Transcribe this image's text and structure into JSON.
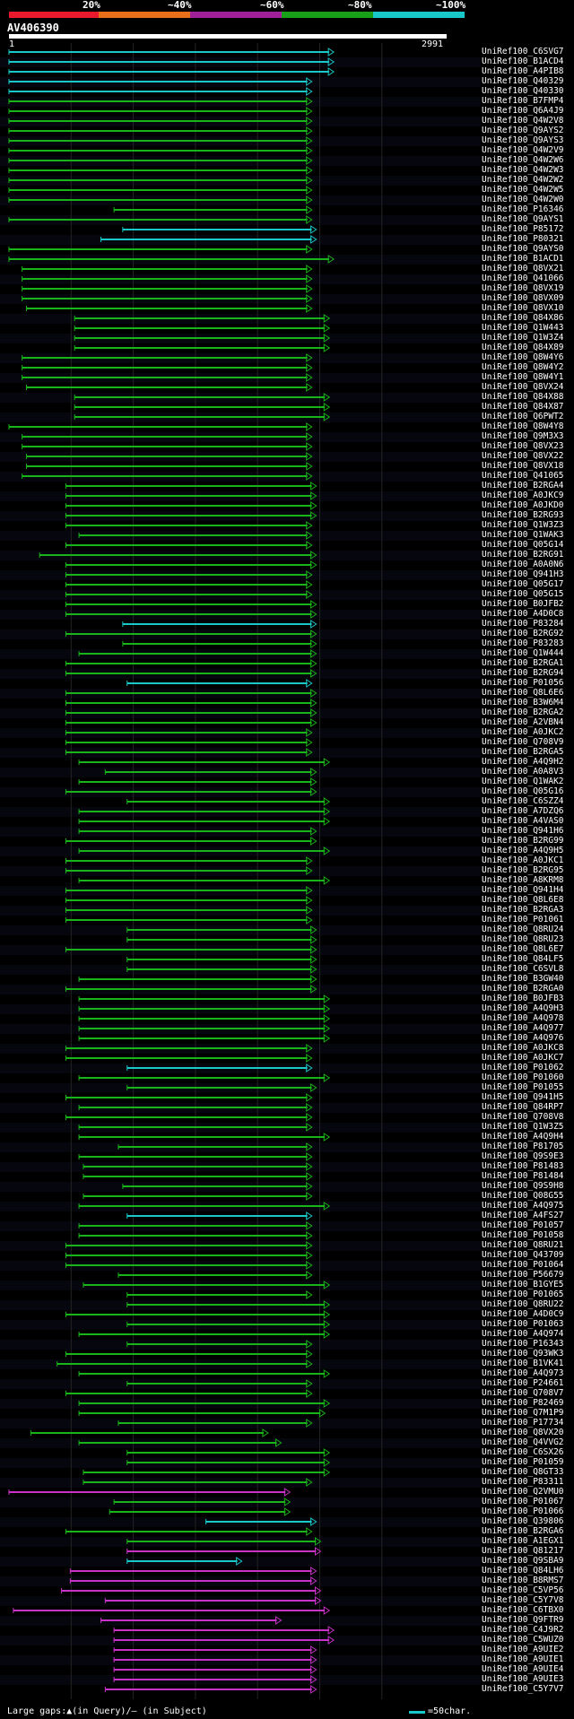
{
  "legend": {
    "labels": [
      "20%",
      "~40%",
      "~60%",
      "~80%",
      "~100%"
    ],
    "colors": [
      "#e8192c",
      "#e8701a",
      "#a0209a",
      "#19a019",
      "#19c8c8"
    ]
  },
  "query": {
    "name": "AV406390",
    "start": "1",
    "end": "2991"
  },
  "footer": {
    "note": "Large gaps:▲(in Query)/– (in Subject)",
    "scale_label": "=50char."
  },
  "hits": [
    {
      "name": "UniRef100_C6SVG7",
      "c": "cyan",
      "s": 0,
      "e": 0.74
    },
    {
      "name": "UniRef100_B1ACD4",
      "c": "cyan",
      "s": 0,
      "e": 0.74
    },
    {
      "name": "UniRef100_A4PIB8",
      "c": "cyan",
      "s": 0,
      "e": 0.74
    },
    {
      "name": "UniRef100_Q40329",
      "c": "cyan",
      "s": 0,
      "e": 0.69
    },
    {
      "name": "UniRef100_Q40330",
      "c": "cyan",
      "s": 0,
      "e": 0.69
    },
    {
      "name": "UniRef100_B7FMP4",
      "c": "green",
      "s": 0,
      "e": 0.69
    },
    {
      "name": "UniRef100_Q6A4J9",
      "c": "green",
      "s": 0,
      "e": 0.69
    },
    {
      "name": "UniRef100_Q4W2V8",
      "c": "green",
      "s": 0,
      "e": 0.69
    },
    {
      "name": "UniRef100_Q9AYS2",
      "c": "green",
      "s": 0,
      "e": 0.69
    },
    {
      "name": "UniRef100_Q9AYS3",
      "c": "green",
      "s": 0,
      "e": 0.69
    },
    {
      "name": "UniRef100_Q4W2V9",
      "c": "green",
      "s": 0,
      "e": 0.69
    },
    {
      "name": "UniRef100_Q4W2W6",
      "c": "green",
      "s": 0,
      "e": 0.69
    },
    {
      "name": "UniRef100_Q4W2W3",
      "c": "green",
      "s": 0,
      "e": 0.69
    },
    {
      "name": "UniRef100_Q4W2W2",
      "c": "green",
      "s": 0,
      "e": 0.69
    },
    {
      "name": "UniRef100_Q4W2W5",
      "c": "green",
      "s": 0,
      "e": 0.69
    },
    {
      "name": "UniRef100_Q4W2W0",
      "c": "green",
      "s": 0,
      "e": 0.69
    },
    {
      "name": "UniRef100_P16346",
      "c": "green",
      "s": 0.24,
      "e": 0.69
    },
    {
      "name": "UniRef100_Q9AYS1",
      "c": "green",
      "s": 0,
      "e": 0.69
    },
    {
      "name": "UniRef100_P85172",
      "c": "cyan",
      "s": 0.26,
      "e": 0.7
    },
    {
      "name": "UniRef100_P80321",
      "c": "cyan",
      "s": 0.21,
      "e": 0.7
    },
    {
      "name": "UniRef100_Q9AYS0",
      "c": "green",
      "s": 0,
      "e": 0.69
    },
    {
      "name": "UniRef100_B1ACD1",
      "c": "green",
      "s": 0,
      "e": 0.74
    },
    {
      "name": "UniRef100_Q8VX21",
      "c": "green",
      "s": 0.03,
      "e": 0.69
    },
    {
      "name": "UniRef100_Q41066",
      "c": "green",
      "s": 0.03,
      "e": 0.69
    },
    {
      "name": "UniRef100_Q8VX19",
      "c": "green",
      "s": 0.03,
      "e": 0.69
    },
    {
      "name": "UniRef100_Q8VX09",
      "c": "green",
      "s": 0.03,
      "e": 0.69
    },
    {
      "name": "UniRef100_Q8VX10",
      "c": "green",
      "s": 0.04,
      "e": 0.69
    },
    {
      "name": "UniRef100_Q84X86",
      "c": "green",
      "s": 0.15,
      "e": 0.73
    },
    {
      "name": "UniRef100_Q1W443",
      "c": "green",
      "s": 0.15,
      "e": 0.73
    },
    {
      "name": "UniRef100_Q1W3Z4",
      "c": "green",
      "s": 0.15,
      "e": 0.73
    },
    {
      "name": "UniRef100_Q84X89",
      "c": "green",
      "s": 0.15,
      "e": 0.73
    },
    {
      "name": "UniRef100_Q8W4Y6",
      "c": "green",
      "s": 0.03,
      "e": 0.69
    },
    {
      "name": "UniRef100_Q8W4Y2",
      "c": "green",
      "s": 0.03,
      "e": 0.69
    },
    {
      "name": "UniRef100_Q8W4Y1",
      "c": "green",
      "s": 0.03,
      "e": 0.69
    },
    {
      "name": "UniRef100_Q8VX24",
      "c": "green",
      "s": 0.04,
      "e": 0.69
    },
    {
      "name": "UniRef100_Q84X88",
      "c": "green",
      "s": 0.15,
      "e": 0.73
    },
    {
      "name": "UniRef100_Q84X87",
      "c": "green",
      "s": 0.15,
      "e": 0.73
    },
    {
      "name": "UniRef100_Q6PWT2",
      "c": "green",
      "s": 0.15,
      "e": 0.73
    },
    {
      "name": "UniRef100_Q8W4Y8",
      "c": "green",
      "s": 0,
      "e": 0.69
    },
    {
      "name": "UniRef100_Q9M3X3",
      "c": "green",
      "s": 0.03,
      "e": 0.69
    },
    {
      "name": "UniRef100_Q8VX23",
      "c": "green",
      "s": 0.03,
      "e": 0.69
    },
    {
      "name": "UniRef100_Q8VX22",
      "c": "green",
      "s": 0.04,
      "e": 0.69
    },
    {
      "name": "UniRef100_Q8VX18",
      "c": "green",
      "s": 0.04,
      "e": 0.69
    },
    {
      "name": "UniRef100_Q41065",
      "c": "green",
      "s": 0.03,
      "e": 0.69
    },
    {
      "name": "UniRef100_B2RGA4",
      "c": "green",
      "s": 0.13,
      "e": 0.7
    },
    {
      "name": "UniRef100_A0JKC9",
      "c": "green",
      "s": 0.13,
      "e": 0.7
    },
    {
      "name": "UniRef100_A0JKD0",
      "c": "green",
      "s": 0.13,
      "e": 0.7
    },
    {
      "name": "UniRef100_B2RG93",
      "c": "green",
      "s": 0.13,
      "e": 0.7
    },
    {
      "name": "UniRef100_Q1W3Z3",
      "c": "green",
      "s": 0.13,
      "e": 0.69
    },
    {
      "name": "UniRef100_Q1WAK3",
      "c": "green",
      "s": 0.16,
      "e": 0.69
    },
    {
      "name": "UniRef100_Q05G14",
      "c": "green",
      "s": 0.13,
      "e": 0.69
    },
    {
      "name": "UniRef100_B2RG91",
      "c": "green",
      "s": 0.07,
      "e": 0.7
    },
    {
      "name": "UniRef100_A0A0N6",
      "c": "green",
      "s": 0.13,
      "e": 0.7
    },
    {
      "name": "UniRef100_Q941H3",
      "c": "green",
      "s": 0.13,
      "e": 0.69
    },
    {
      "name": "UniRef100_Q05G17",
      "c": "green",
      "s": 0.13,
      "e": 0.69
    },
    {
      "name": "UniRef100_Q05G15",
      "c": "green",
      "s": 0.13,
      "e": 0.69
    },
    {
      "name": "UniRef100_B0JFB2",
      "c": "green",
      "s": 0.13,
      "e": 0.7
    },
    {
      "name": "UniRef100_A4D0C8",
      "c": "green",
      "s": 0.13,
      "e": 0.7
    },
    {
      "name": "UniRef100_P83284",
      "c": "cyan",
      "s": 0.26,
      "e": 0.7
    },
    {
      "name": "UniRef100_B2RG92",
      "c": "green",
      "s": 0.13,
      "e": 0.7
    },
    {
      "name": "UniRef100_P83283",
      "c": "green",
      "s": 0.26,
      "e": 0.7
    },
    {
      "name": "UniRef100_Q1W444",
      "c": "green",
      "s": 0.16,
      "e": 0.7
    },
    {
      "name": "UniRef100_B2RGA1",
      "c": "green",
      "s": 0.13,
      "e": 0.7
    },
    {
      "name": "UniRef100_B2RG94",
      "c": "green",
      "s": 0.13,
      "e": 0.7
    },
    {
      "name": "UniRef100_P01056",
      "c": "cyan",
      "s": 0.27,
      "e": 0.69
    },
    {
      "name": "UniRef100_Q8L6E6",
      "c": "green",
      "s": 0.13,
      "e": 0.7
    },
    {
      "name": "UniRef100_B3W6M4",
      "c": "green",
      "s": 0.13,
      "e": 0.7
    },
    {
      "name": "UniRef100_B2RGA2",
      "c": "green",
      "s": 0.13,
      "e": 0.7
    },
    {
      "name": "UniRef100_A2VBN4",
      "c": "green",
      "s": 0.13,
      "e": 0.7
    },
    {
      "name": "UniRef100_A0JKC2",
      "c": "green",
      "s": 0.13,
      "e": 0.69
    },
    {
      "name": "UniRef100_Q708V9",
      "c": "green",
      "s": 0.13,
      "e": 0.69
    },
    {
      "name": "UniRef100_B2RGA5",
      "c": "green",
      "s": 0.13,
      "e": 0.69
    },
    {
      "name": "UniRef100_A4Q9H2",
      "c": "green",
      "s": 0.16,
      "e": 0.73
    },
    {
      "name": "UniRef100_A0A8V3",
      "c": "green",
      "s": 0.22,
      "e": 0.7
    },
    {
      "name": "UniRef100_Q1WAK2",
      "c": "green",
      "s": 0.16,
      "e": 0.7
    },
    {
      "name": "UniRef100_Q05G16",
      "c": "green",
      "s": 0.13,
      "e": 0.7
    },
    {
      "name": "UniRef100_C6SZZ4",
      "c": "green",
      "s": 0.27,
      "e": 0.73
    },
    {
      "name": "UniRef100_A7DZQ6",
      "c": "green",
      "s": 0.16,
      "e": 0.73
    },
    {
      "name": "UniRef100_A4VAS0",
      "c": "green",
      "s": 0.16,
      "e": 0.73
    },
    {
      "name": "UniRef100_Q941H6",
      "c": "green",
      "s": 0.16,
      "e": 0.7
    },
    {
      "name": "UniRef100_B2RG99",
      "c": "green",
      "s": 0.13,
      "e": 0.7
    },
    {
      "name": "UniRef100_A4Q9H5",
      "c": "green",
      "s": 0.16,
      "e": 0.73
    },
    {
      "name": "UniRef100_A0JKC1",
      "c": "green",
      "s": 0.13,
      "e": 0.69
    },
    {
      "name": "UniRef100_B2RG95",
      "c": "green",
      "s": 0.13,
      "e": 0.69
    },
    {
      "name": "UniRef100_A8KRM8",
      "c": "green",
      "s": 0.16,
      "e": 0.73
    },
    {
      "name": "UniRef100_Q941H4",
      "c": "green",
      "s": 0.13,
      "e": 0.69
    },
    {
      "name": "UniRef100_Q8L6E8",
      "c": "green",
      "s": 0.13,
      "e": 0.69
    },
    {
      "name": "UniRef100_B2RGA3",
      "c": "green",
      "s": 0.13,
      "e": 0.69
    },
    {
      "name": "UniRef100_P01061",
      "c": "green",
      "s": 0.13,
      "e": 0.69
    },
    {
      "name": "UniRef100_Q8RU24",
      "c": "green",
      "s": 0.27,
      "e": 0.7
    },
    {
      "name": "UniRef100_Q8RU23",
      "c": "green",
      "s": 0.27,
      "e": 0.7
    },
    {
      "name": "UniRef100_Q8L6E7",
      "c": "green",
      "s": 0.13,
      "e": 0.7
    },
    {
      "name": "UniRef100_Q84LF5",
      "c": "green",
      "s": 0.27,
      "e": 0.7
    },
    {
      "name": "UniRef100_C6SVL8",
      "c": "green",
      "s": 0.27,
      "e": 0.7
    },
    {
      "name": "UniRef100_B3GW40",
      "c": "green",
      "s": 0.16,
      "e": 0.7
    },
    {
      "name": "UniRef100_B2RGA0",
      "c": "green",
      "s": 0.13,
      "e": 0.7
    },
    {
      "name": "UniRef100_B0JFB3",
      "c": "green",
      "s": 0.16,
      "e": 0.73
    },
    {
      "name": "UniRef100_A4Q9H3",
      "c": "green",
      "s": 0.16,
      "e": 0.73
    },
    {
      "name": "UniRef100_A4Q978",
      "c": "green",
      "s": 0.16,
      "e": 0.73
    },
    {
      "name": "UniRef100_A4Q977",
      "c": "green",
      "s": 0.16,
      "e": 0.73
    },
    {
      "name": "UniRef100_A4Q976",
      "c": "green",
      "s": 0.16,
      "e": 0.73
    },
    {
      "name": "UniRef100_A0JKC8",
      "c": "green",
      "s": 0.13,
      "e": 0.69
    },
    {
      "name": "UniRef100_A0JKC7",
      "c": "green",
      "s": 0.13,
      "e": 0.69
    },
    {
      "name": "UniRef100_P01062",
      "c": "cyan",
      "s": 0.27,
      "e": 0.69
    },
    {
      "name": "UniRef100_P01060",
      "c": "green",
      "s": 0.16,
      "e": 0.73
    },
    {
      "name": "UniRef100_P01055",
      "c": "green",
      "s": 0.27,
      "e": 0.7
    },
    {
      "name": "UniRef100_Q941H5",
      "c": "green",
      "s": 0.13,
      "e": 0.69
    },
    {
      "name": "UniRef100_Q84RP7",
      "c": "green",
      "s": 0.16,
      "e": 0.69
    },
    {
      "name": "UniRef100_Q708V8",
      "c": "green",
      "s": 0.13,
      "e": 0.69
    },
    {
      "name": "UniRef100_Q1W3Z5",
      "c": "green",
      "s": 0.16,
      "e": 0.69
    },
    {
      "name": "UniRef100_A4Q9H4",
      "c": "green",
      "s": 0.16,
      "e": 0.73
    },
    {
      "name": "UniRef100_P81705",
      "c": "green",
      "s": 0.25,
      "e": 0.69
    },
    {
      "name": "UniRef100_Q9S9E3",
      "c": "green",
      "s": 0.16,
      "e": 0.69
    },
    {
      "name": "UniRef100_P81483",
      "c": "green",
      "s": 0.17,
      "e": 0.69
    },
    {
      "name": "UniRef100_P81484",
      "c": "green",
      "s": 0.17,
      "e": 0.69
    },
    {
      "name": "UniRef100_Q9S9H8",
      "c": "green",
      "s": 0.26,
      "e": 0.69
    },
    {
      "name": "UniRef100_Q08G55",
      "c": "green",
      "s": 0.17,
      "e": 0.69
    },
    {
      "name": "UniRef100_A4Q975",
      "c": "green",
      "s": 0.16,
      "e": 0.73
    },
    {
      "name": "UniRef100_A4FS27",
      "c": "cyan",
      "s": 0.27,
      "e": 0.69
    },
    {
      "name": "UniRef100_P01057",
      "c": "green",
      "s": 0.16,
      "e": 0.69
    },
    {
      "name": "UniRef100_P01058",
      "c": "green",
      "s": 0.16,
      "e": 0.69
    },
    {
      "name": "UniRef100_Q8RU21",
      "c": "green",
      "s": 0.13,
      "e": 0.69
    },
    {
      "name": "UniRef100_Q43709",
      "c": "green",
      "s": 0.13,
      "e": 0.69
    },
    {
      "name": "UniRef100_P01064",
      "c": "green",
      "s": 0.13,
      "e": 0.69
    },
    {
      "name": "UniRef100_P56679",
      "c": "green",
      "s": 0.25,
      "e": 0.69
    },
    {
      "name": "UniRef100_B1GYE5",
      "c": "green",
      "s": 0.17,
      "e": 0.73
    },
    {
      "name": "UniRef100_P01065",
      "c": "green",
      "s": 0.27,
      "e": 0.69
    },
    {
      "name": "UniRef100_Q8RU22",
      "c": "green",
      "s": 0.27,
      "e": 0.73
    },
    {
      "name": "UniRef100_A4D0C9",
      "c": "green",
      "s": 0.13,
      "e": 0.73
    },
    {
      "name": "UniRef100_P01063",
      "c": "green",
      "s": 0.27,
      "e": 0.73
    },
    {
      "name": "UniRef100_A4Q974",
      "c": "green",
      "s": 0.16,
      "e": 0.73
    },
    {
      "name": "UniRef100_P16343",
      "c": "green",
      "s": 0.27,
      "e": 0.69
    },
    {
      "name": "UniRef100_Q93WK3",
      "c": "green",
      "s": 0.13,
      "e": 0.69
    },
    {
      "name": "UniRef100_B1VK41",
      "c": "green",
      "s": 0.11,
      "e": 0.69
    },
    {
      "name": "UniRef100_A4Q973",
      "c": "green",
      "s": 0.16,
      "e": 0.73
    },
    {
      "name": "UniRef100_P24661",
      "c": "green",
      "s": 0.27,
      "e": 0.69
    },
    {
      "name": "UniRef100_Q708V7",
      "c": "green",
      "s": 0.13,
      "e": 0.69
    },
    {
      "name": "UniRef100_P82469",
      "c": "green",
      "s": 0.16,
      "e": 0.73
    },
    {
      "name": "UniRef100_Q7M1P9",
      "c": "green",
      "s": 0.16,
      "e": 0.72
    },
    {
      "name": "UniRef100_P17734",
      "c": "green",
      "s": 0.25,
      "e": 0.69
    },
    {
      "name": "UniRef100_Q8VX20",
      "c": "green",
      "s": 0.05,
      "e": 0.59
    },
    {
      "name": "UniRef100_Q4VVG2",
      "c": "green",
      "s": 0.16,
      "e": 0.62
    },
    {
      "name": "UniRef100_C6SX26",
      "c": "green",
      "s": 0.27,
      "e": 0.73
    },
    {
      "name": "UniRef100_P01059",
      "c": "green",
      "s": 0.27,
      "e": 0.73
    },
    {
      "name": "UniRef100_Q8GT33",
      "c": "green",
      "s": 0.17,
      "e": 0.73
    },
    {
      "name": "UniRef100_P83311",
      "c": "green",
      "s": 0.17,
      "e": 0.69
    },
    {
      "name": "UniRef100_Q2VMU0",
      "c": "magenta",
      "s": 0,
      "e": 0.64
    },
    {
      "name": "UniRef100_P01067",
      "c": "green",
      "s": 0.24,
      "e": 0.64
    },
    {
      "name": "UniRef100_P01066",
      "c": "green",
      "s": 0.23,
      "e": 0.64
    },
    {
      "name": "UniRef100_Q39806",
      "c": "cyan",
      "s": 0.45,
      "e": 0.7
    },
    {
      "name": "UniRef100_B2RGA6",
      "c": "green",
      "s": 0.13,
      "e": 0.69
    },
    {
      "name": "UniRef100_A1EGX1",
      "c": "green",
      "s": 0.27,
      "e": 0.71
    },
    {
      "name": "UniRef100_Q81217",
      "c": "magenta",
      "s": 0.27,
      "e": 0.71
    },
    {
      "name": "UniRef100_Q9SBA9",
      "c": "cyan",
      "s": 0.27,
      "e": 0.53
    },
    {
      "name": "UniRef100_Q84LH6",
      "c": "magenta",
      "s": 0.14,
      "e": 0.7
    },
    {
      "name": "UniRef100_B8RMS7",
      "c": "magenta",
      "s": 0.14,
      "e": 0.7
    },
    {
      "name": "UniRef100_C5VP56",
      "c": "magenta",
      "s": 0.12,
      "e": 0.71
    },
    {
      "name": "UniRef100_C5Y7V8",
      "c": "magenta",
      "s": 0.22,
      "e": 0.71
    },
    {
      "name": "UniRef100_C6TBX0",
      "c": "magenta",
      "s": 0.01,
      "e": 0.73
    },
    {
      "name": "UniRef100_Q9FTR9",
      "c": "magenta",
      "s": 0.21,
      "e": 0.62
    },
    {
      "name": "UniRef100_C4J9R2",
      "c": "magenta",
      "s": 0.24,
      "e": 0.74
    },
    {
      "name": "UniRef100_C5WUZ0",
      "c": "magenta",
      "s": 0.24,
      "e": 0.74
    },
    {
      "name": "UniRef100_A9UIE2",
      "c": "magenta",
      "s": 0.24,
      "e": 0.7
    },
    {
      "name": "UniRef100_A9UIE1",
      "c": "magenta",
      "s": 0.24,
      "e": 0.7
    },
    {
      "name": "UniRef100_A9UIE4",
      "c": "magenta",
      "s": 0.24,
      "e": 0.7
    },
    {
      "name": "UniRef100_A9UIE3",
      "c": "magenta",
      "s": 0.24,
      "e": 0.7
    },
    {
      "name": "UniRef100_C5Y7V7",
      "c": "magenta",
      "s": 0.22,
      "e": 0.7
    }
  ]
}
